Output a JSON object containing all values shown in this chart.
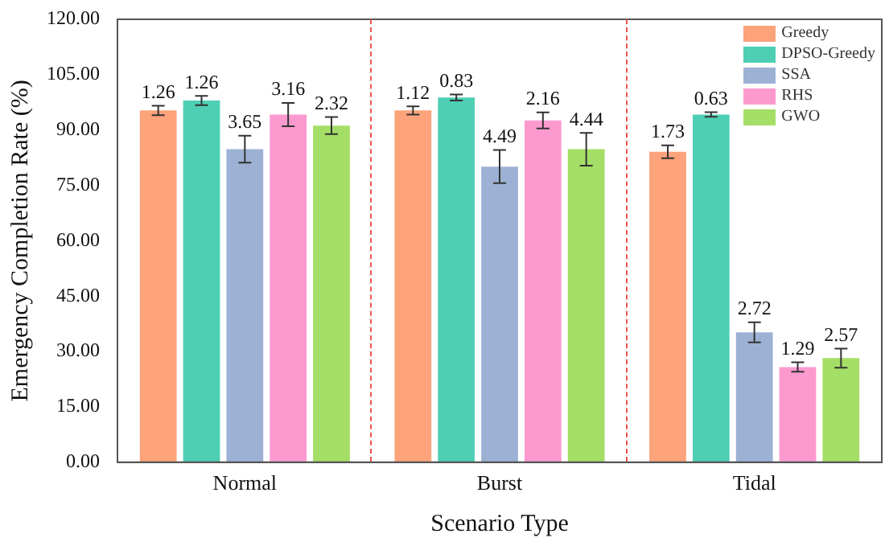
{
  "chart_data": {
    "type": "bar",
    "xlabel": "Scenario Type",
    "ylabel": "Emergency Completion Rate (%)",
    "categories": [
      "Normal",
      "Burst",
      "Tidal"
    ],
    "series": [
      {
        "name": "Greedy",
        "color": "#fca37c",
        "values": [
          95.3,
          95.3,
          84.1
        ],
        "errors": [
          1.26,
          1.12,
          1.73
        ]
      },
      {
        "name": "DPSO-Greedy",
        "color": "#4ecfb4",
        "values": [
          98.0,
          98.8,
          94.2
        ],
        "errors": [
          1.26,
          0.83,
          0.63
        ]
      },
      {
        "name": "SSA",
        "color": "#9db1d5",
        "values": [
          84.8,
          80.1,
          35.2
        ],
        "errors": [
          3.65,
          4.49,
          2.72
        ]
      },
      {
        "name": "RHS",
        "color": "#fc9ad0",
        "values": [
          94.2,
          92.6,
          25.8
        ],
        "errors": [
          3.16,
          2.16,
          1.29
        ]
      },
      {
        "name": "GWO",
        "color": "#a5de66",
        "values": [
          91.2,
          84.8,
          28.2
        ],
        "errors": [
          2.32,
          4.44,
          2.57
        ]
      }
    ],
    "ylim": [
      0,
      120
    ],
    "yticks": [
      {
        "value": 0,
        "label": "0.00"
      },
      {
        "value": 15,
        "label": "15.00"
      },
      {
        "value": 30,
        "label": "30.00"
      },
      {
        "value": 45,
        "label": "45.00"
      },
      {
        "value": 60,
        "label": "60.00"
      },
      {
        "value": 75,
        "label": "75.00"
      },
      {
        "value": 90,
        "label": "90.00"
      },
      {
        "value": 105,
        "label": "105.00"
      },
      {
        "value": 120,
        "label": "120.00"
      }
    ],
    "grid": false,
    "legend": "top right",
    "annotations": [
      "1.26",
      "1.12",
      "1.73",
      "1.26",
      "0.83",
      "0.63",
      "3.65",
      "4.49",
      "2.72",
      "3.16",
      "2.16",
      "1.29",
      "2.32",
      "4.44",
      "2.57"
    ]
  }
}
